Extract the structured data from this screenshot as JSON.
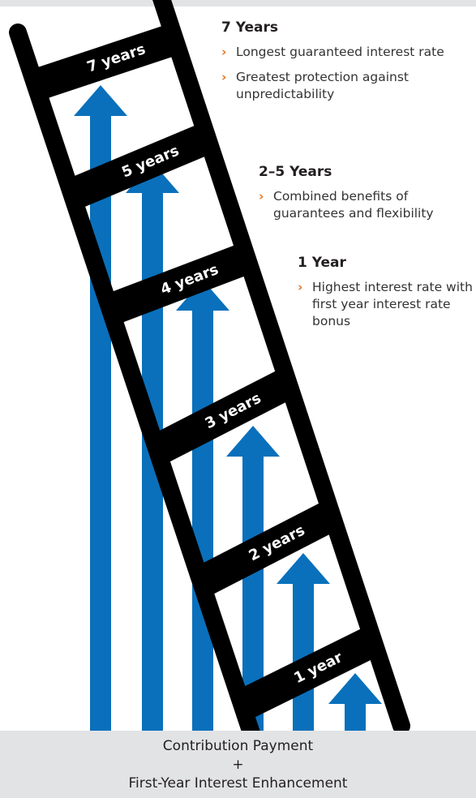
{
  "colors": {
    "arrow": "#0a70bb",
    "ladder": "#000000",
    "accent": "#e8741e",
    "footer_bg": "#e2e3e5"
  },
  "rungs": [
    {
      "label": "7 years"
    },
    {
      "label": "5 years"
    },
    {
      "label": "4 years"
    },
    {
      "label": "3 years"
    },
    {
      "label": "2 years"
    },
    {
      "label": "1 year"
    }
  ],
  "sections": [
    {
      "title": "7 Years",
      "bullets": [
        "Longest guaranteed interest rate",
        "Greatest protection against unpredictability"
      ]
    },
    {
      "title": "2–5 Years",
      "bullets": [
        "Combined benefits of guarantees and flexibility"
      ]
    },
    {
      "title": "1 Year",
      "bullets": [
        "Highest interest rate with first year interest rate bonus"
      ]
    }
  ],
  "footer": {
    "line1": "Contribution Payment",
    "plus": "+",
    "line2": "First-Year Interest Enhancement"
  }
}
